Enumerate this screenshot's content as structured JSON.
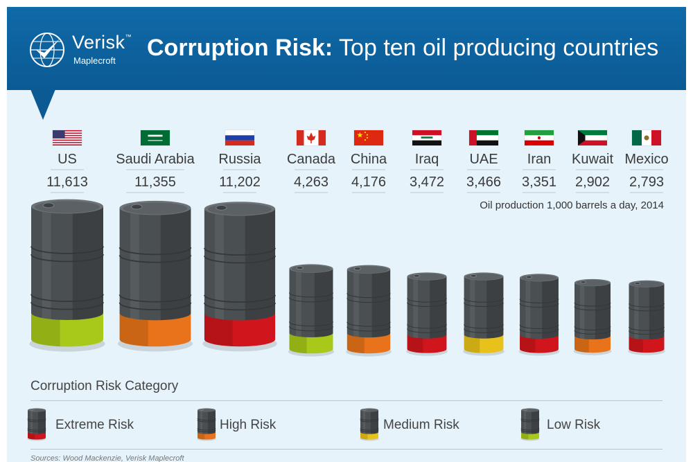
{
  "header": {
    "logo_name": "Verisk",
    "logo_tm": "™",
    "logo_sub": "Maplecroft",
    "title_bold": "Corruption Risk:",
    "title_rest": " Top ten oil producing countries",
    "brand_color": "#0b5a94"
  },
  "unit_note": "Oil production 1,000 barrels a day, 2014",
  "legend": {
    "title": "Corruption Risk Category",
    "items": [
      {
        "label": "Extreme Risk",
        "color": "#d0161c"
      },
      {
        "label": "High Risk",
        "color": "#e8731a"
      },
      {
        "label": "Medium Risk",
        "color": "#e8c21a"
      },
      {
        "label": "Low Risk",
        "color": "#a8c81a"
      }
    ]
  },
  "source": "Sources: Wood Mackenzie, Verisk Maplecroft",
  "chart_data": {
    "type": "bar",
    "title": "Corruption Risk: Top ten oil producing countries",
    "ylabel": "Oil production 1,000 barrels a day, 2014",
    "categories": [
      "US",
      "Saudi Arabia",
      "Russia",
      "Canada",
      "China",
      "Iraq",
      "UAE",
      "Iran",
      "Kuwait",
      "Mexico"
    ],
    "values": [
      11613,
      11355,
      11202,
      4263,
      4176,
      3472,
      3466,
      3351,
      2902,
      2793
    ],
    "value_labels": [
      "11,613",
      "11,355",
      "11,202",
      "4,263",
      "4,176",
      "3,472",
      "3,466",
      "3,351",
      "2,902",
      "2,793"
    ],
    "flags": [
      "us-flag-icon",
      "saudi-arabia-flag-icon",
      "russia-flag-icon",
      "canada-flag-icon",
      "china-flag-icon",
      "iraq-flag-icon",
      "uae-flag-icon",
      "iran-flag-icon",
      "kuwait-flag-icon",
      "mexico-flag-icon"
    ],
    "risk": [
      "Low Risk",
      "High Risk",
      "Extreme Risk",
      "Low Risk",
      "High Risk",
      "Extreme Risk",
      "Medium Risk",
      "Extreme Risk",
      "High Risk",
      "Extreme Risk"
    ]
  }
}
